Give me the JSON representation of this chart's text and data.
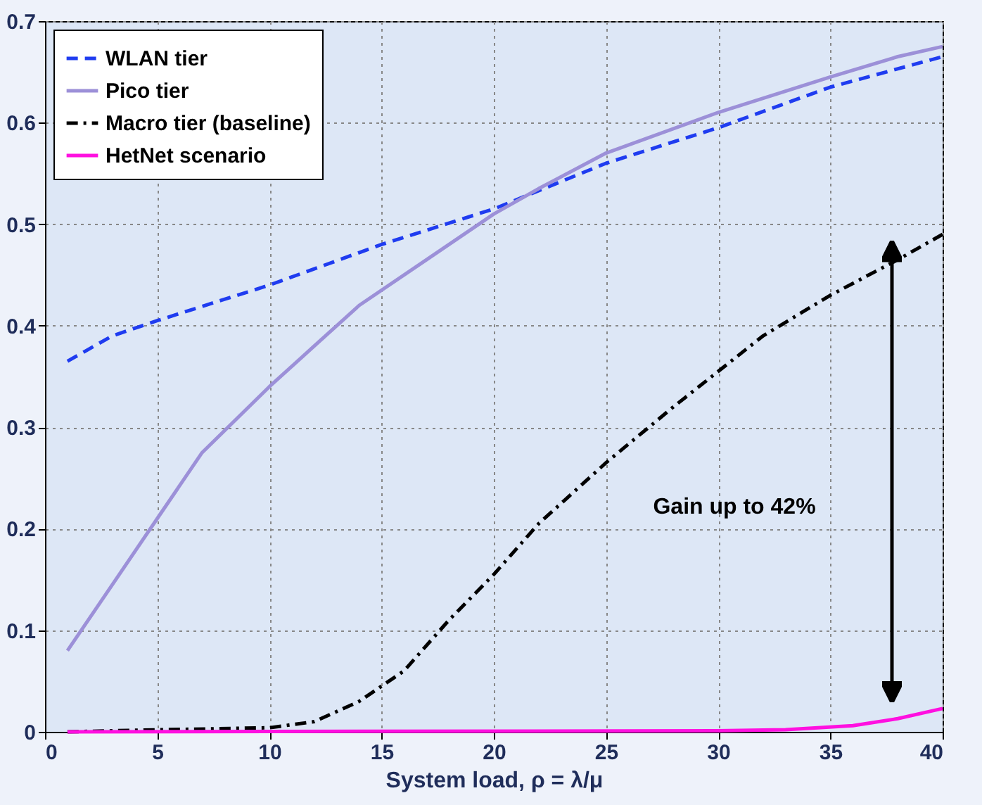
{
  "chart_data": {
    "type": "line",
    "xlabel": "System load, ρ = λ/μ",
    "xlim": [
      0,
      40
    ],
    "xticks": [
      0,
      5,
      10,
      15,
      20,
      25,
      30,
      35,
      40
    ],
    "ylim": [
      0,
      0.7
    ],
    "yticks": [
      0,
      0.1,
      0.2,
      0.3,
      0.4,
      0.5,
      0.6,
      0.7
    ],
    "grid": true,
    "legend": "top left",
    "marker": "none",
    "series": [
      {
        "name": "WLAN tier",
        "color": "#1f3cf0",
        "line_style": "dashed",
        "x": [
          1,
          3,
          5,
          10,
          15,
          20,
          25,
          30,
          35,
          40
        ],
        "values": [
          0.365,
          0.39,
          0.405,
          0.44,
          0.48,
          0.515,
          0.56,
          0.595,
          0.635,
          0.665
        ]
      },
      {
        "name": "Pico tier",
        "color": "#9c90d8",
        "line_style": "solid",
        "x": [
          1,
          3,
          5,
          7,
          10,
          12,
          14,
          17,
          20,
          22,
          25,
          30,
          35,
          38,
          40
        ],
        "values": [
          0.08,
          0.145,
          0.21,
          0.275,
          0.34,
          0.38,
          0.42,
          0.465,
          0.51,
          0.535,
          0.57,
          0.61,
          0.645,
          0.665,
          0.675
        ]
      },
      {
        "name": "Macro tier (baseline)",
        "color": "#000000",
        "line_style": "dashdot",
        "x": [
          1,
          5,
          10,
          12,
          14,
          16,
          18,
          20,
          22,
          25,
          28,
          30,
          32,
          35,
          38,
          40
        ],
        "values": [
          0,
          0.002,
          0.004,
          0.01,
          0.03,
          0.06,
          0.11,
          0.155,
          0.205,
          0.265,
          0.32,
          0.355,
          0.39,
          0.43,
          0.465,
          0.49
        ]
      },
      {
        "name": "HetNet scenario",
        "color": "#ff10e0",
        "line_style": "solid",
        "x": [
          1,
          30,
          33,
          36,
          38,
          40
        ],
        "values": [
          0,
          0.001,
          0.002,
          0.006,
          0.013,
          0.023
        ]
      }
    ],
    "annotations": [
      "Gain up to 42%"
    ]
  }
}
